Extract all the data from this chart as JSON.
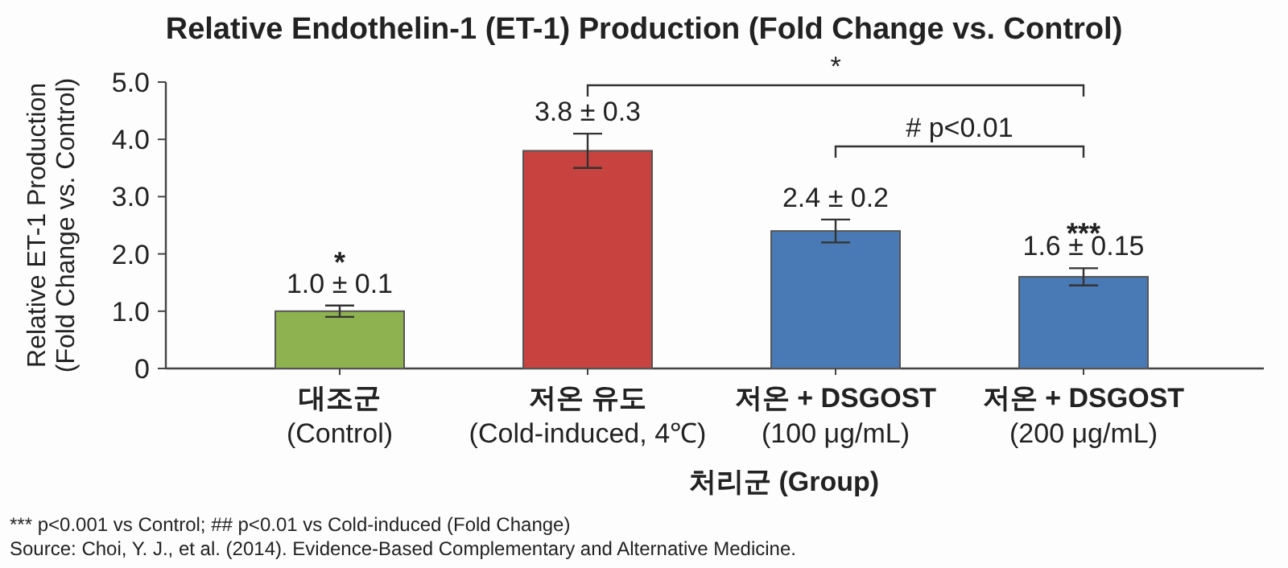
{
  "chart_data": {
    "type": "bar",
    "title": "Relative Endothelin-1 (ET-1) Production (Fold Change vs. Control)",
    "xlabel": "처리군 (Group)",
    "ylabel": "Relative ET-1 Production\n(Fold Change vs. Control)",
    "categories": [
      "대조군\n(Control)",
      "저온 유도\n(Cold-induced, 4℃)",
      "저온 + DSGOST\n(100 μg/mL)",
      "저온 + DSGOST\n(200 μg/mL)"
    ],
    "values": [
      1.0,
      3.8,
      2.4,
      1.6
    ],
    "colors": [
      "#8db24f",
      "#c8433f",
      "#4a7ab5",
      "#4a7ab5"
    ],
    "errors": [
      0.1,
      0.3,
      0.2,
      0.15
    ],
    "value_labels": [
      "1.0 ± 0.1",
      "3.8 ± 0.3",
      "2.4 ± 0.2",
      "1.6 ± 0.15"
    ],
    "ylim": [
      0,
      5
    ],
    "yticks": [
      0,
      {
        "value": 1,
        "label": "1.0"
      },
      {
        "value": 2,
        "label": "2.0"
      },
      {
        "value": 3,
        "label": "3.0"
      },
      {
        "value": 4,
        "label": "4.0"
      },
      {
        "value": 5,
        "label": "5.0"
      }
    ],
    "grid": false,
    "annotations": [
      "*",
      "***",
      "*",
      "# p<0.01",
      "*** p<0.001 vs Control; ## p<0.01 vs Cold-induced (Fold Change)",
      "Source: Choi, Y. J., et al. (2014). Evidence-Based Complementary and Alternative Medicine."
    ]
  }
}
